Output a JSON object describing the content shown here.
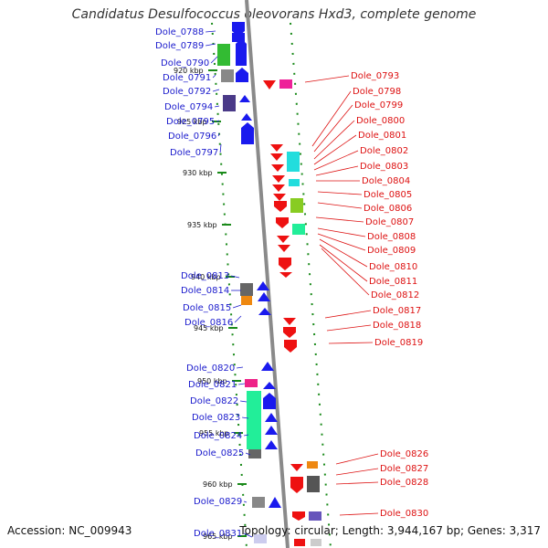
{
  "title": "Candidatus Desulfococcus oleovorans Hxd3, complete genome",
  "footer": {
    "accession": "Accession: NC_009943",
    "topology": "Topology: circular; Length: 3,944,167 bp; Genes: 3,317"
  },
  "colors": {
    "left_labels": "#1a1acc",
    "right_labels": "#dd1111",
    "backbone": "#8a8a8a",
    "tick_dots": "#1a8a1a"
  },
  "kbp_ticks": [
    "920 kbp",
    "925 kbp",
    "930 kbp",
    "935 kbp",
    "940 kbp",
    "945 kbp",
    "950 kbp",
    "955 kbp",
    "960 kbp",
    "965 kbp"
  ],
  "left_genes": [
    "Dole_0788",
    "Dole_0789",
    "Dole_0790",
    "Dole_0791",
    "Dole_0792",
    "Dole_0794",
    "Dole_0795",
    "Dole_0796",
    "Dole_0797",
    "Dole_0813",
    "Dole_0814",
    "Dole_0815",
    "Dole_0816",
    "Dole_0820",
    "Dole_0821",
    "Dole_0822",
    "Dole_0823",
    "Dole_0824",
    "Dole_0825",
    "Dole_0829",
    "Dole_0831"
  ],
  "right_genes": [
    "Dole_0793",
    "Dole_0798",
    "Dole_0799",
    "Dole_0800",
    "Dole_0801",
    "Dole_0802",
    "Dole_0803",
    "Dole_0804",
    "Dole_0805",
    "Dole_0806",
    "Dole_0807",
    "Dole_0808",
    "Dole_0809",
    "Dole_0810",
    "Dole_0811",
    "Dole_0812",
    "Dole_0817",
    "Dole_0818",
    "Dole_0819",
    "Dole_0826",
    "Dole_0827",
    "Dole_0828",
    "Dole_0830"
  ]
}
